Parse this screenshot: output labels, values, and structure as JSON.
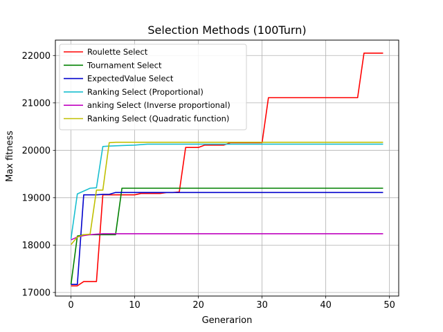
{
  "chart_data": {
    "type": "line",
    "title": "Selection Methods (100Turn)",
    "xlabel": "Generarion",
    "ylabel": "Max fitness",
    "xlim": [
      -2.45,
      51.45
    ],
    "ylim": [
      16925,
      22325
    ],
    "xticks": [
      0,
      10,
      20,
      30,
      40,
      50
    ],
    "yticks": [
      17000,
      18000,
      19000,
      20000,
      21000,
      22000
    ],
    "xtick_labels": [
      "0",
      "10",
      "20",
      "30",
      "40",
      "50"
    ],
    "ytick_labels": [
      "17000",
      "18000",
      "19000",
      "20000",
      "21000",
      "22000"
    ],
    "grid": true,
    "legend_position": "top-left",
    "series": [
      {
        "name": "Roulette Select",
        "color": "#ff0000",
        "points": [
          [
            0,
            17140
          ],
          [
            1,
            17140
          ],
          [
            2,
            17230
          ],
          [
            3,
            17230
          ],
          [
            4,
            17230
          ],
          [
            5,
            19060
          ],
          [
            6,
            19060
          ],
          [
            7,
            19060
          ],
          [
            8,
            19060
          ],
          [
            9,
            19060
          ],
          [
            10,
            19060
          ],
          [
            11,
            19090
          ],
          [
            12,
            19090
          ],
          [
            13,
            19090
          ],
          [
            14,
            19090
          ],
          [
            15,
            19110
          ],
          [
            16,
            19110
          ],
          [
            17,
            19120
          ],
          [
            18,
            20060
          ],
          [
            19,
            20060
          ],
          [
            20,
            20060
          ],
          [
            21,
            20110
          ],
          [
            22,
            20110
          ],
          [
            23,
            20110
          ],
          [
            24,
            20110
          ],
          [
            25,
            20160
          ],
          [
            26,
            20160
          ],
          [
            27,
            20160
          ],
          [
            28,
            20160
          ],
          [
            29,
            20160
          ],
          [
            30,
            20160
          ],
          [
            31,
            21110
          ],
          [
            32,
            21110
          ],
          [
            33,
            21110
          ],
          [
            34,
            21110
          ],
          [
            35,
            21110
          ],
          [
            36,
            21110
          ],
          [
            37,
            21110
          ],
          [
            38,
            21110
          ],
          [
            39,
            21110
          ],
          [
            40,
            21110
          ],
          [
            41,
            21110
          ],
          [
            42,
            21110
          ],
          [
            43,
            21110
          ],
          [
            44,
            21110
          ],
          [
            45,
            21110
          ],
          [
            46,
            22050
          ],
          [
            47,
            22050
          ],
          [
            48,
            22050
          ],
          [
            49,
            22050
          ]
        ]
      },
      {
        "name": "Tournament Select",
        "color": "#008000",
        "points": [
          [
            0,
            17170
          ],
          [
            1,
            18190
          ],
          [
            2,
            18220
          ],
          [
            3,
            18220
          ],
          [
            4,
            18220
          ],
          [
            5,
            18220
          ],
          [
            6,
            18220
          ],
          [
            7,
            18220
          ],
          [
            8,
            19200
          ],
          [
            9,
            19200
          ],
          [
            10,
            19200
          ],
          [
            15,
            19200
          ],
          [
            20,
            19200
          ],
          [
            30,
            19200
          ],
          [
            40,
            19200
          ],
          [
            49,
            19200
          ]
        ]
      },
      {
        "name": "ExpectedValue Select",
        "color": "#0000cc",
        "points": [
          [
            0,
            17170
          ],
          [
            1,
            17170
          ],
          [
            2,
            19060
          ],
          [
            3,
            19060
          ],
          [
            4,
            19060
          ],
          [
            5,
            19070
          ],
          [
            6,
            19070
          ],
          [
            7,
            19110
          ],
          [
            8,
            19110
          ],
          [
            10,
            19110
          ],
          [
            15,
            19110
          ],
          [
            20,
            19110
          ],
          [
            30,
            19110
          ],
          [
            40,
            19110
          ],
          [
            49,
            19110
          ]
        ]
      },
      {
        "name": "Ranking Select (Proportional)",
        "color": "#17becf",
        "points": [
          [
            0,
            18130
          ],
          [
            1,
            19080
          ],
          [
            2,
            19140
          ],
          [
            3,
            19200
          ],
          [
            4,
            19210
          ],
          [
            5,
            20080
          ],
          [
            6,
            20090
          ],
          [
            8,
            20100
          ],
          [
            10,
            20110
          ],
          [
            11,
            20120
          ],
          [
            12,
            20130
          ],
          [
            15,
            20130
          ],
          [
            20,
            20130
          ],
          [
            30,
            20130
          ],
          [
            40,
            20130
          ],
          [
            49,
            20130
          ]
        ]
      },
      {
        "name": "anking Select (Inverse proportional)",
        "color": "#bf00bf",
        "points": [
          [
            0,
            18110
          ],
          [
            1,
            18170
          ],
          [
            2,
            18200
          ],
          [
            3,
            18220
          ],
          [
            4,
            18230
          ],
          [
            5,
            18240
          ],
          [
            10,
            18240
          ],
          [
            20,
            18240
          ],
          [
            30,
            18240
          ],
          [
            40,
            18240
          ],
          [
            49,
            18240
          ]
        ]
      },
      {
        "name": "Ranking Select (Quadratic function)",
        "color": "#bfbf00",
        "points": [
          [
            0,
            18010
          ],
          [
            1,
            18170
          ],
          [
            2,
            18220
          ],
          [
            3,
            18230
          ],
          [
            4,
            19160
          ],
          [
            5,
            19160
          ],
          [
            6,
            20160
          ],
          [
            7,
            20170
          ],
          [
            8,
            20170
          ],
          [
            10,
            20170
          ],
          [
            20,
            20170
          ],
          [
            30,
            20170
          ],
          [
            40,
            20170
          ],
          [
            49,
            20170
          ]
        ]
      }
    ]
  }
}
